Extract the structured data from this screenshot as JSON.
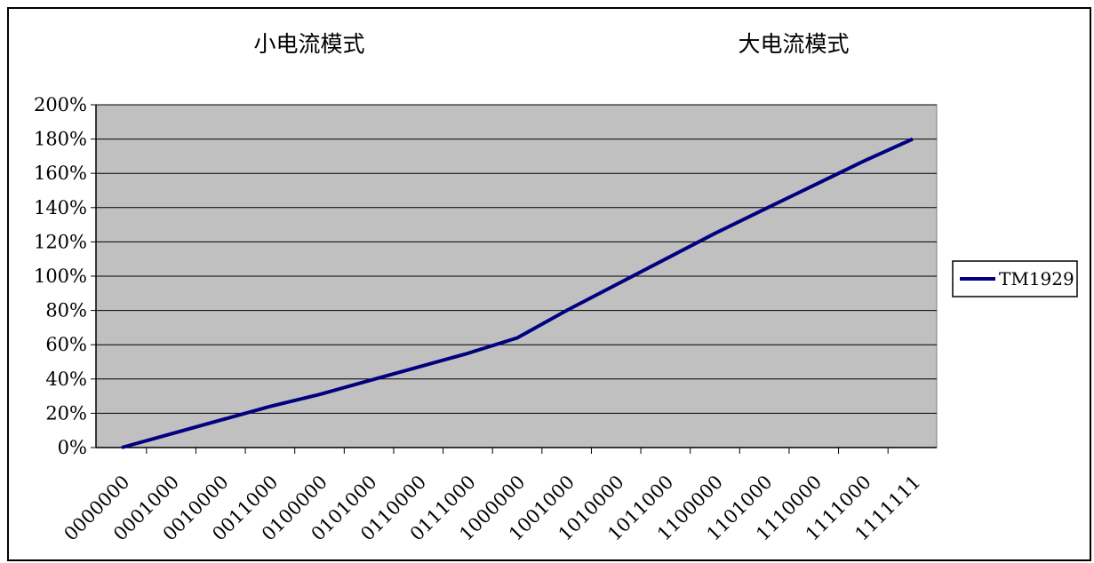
{
  "chart_data": {
    "type": "line",
    "title": "",
    "xlabel": "",
    "ylabel": "",
    "ylim": [
      0,
      200
    ],
    "ytick_format": "percent",
    "yticks": [
      0,
      20,
      40,
      60,
      80,
      100,
      120,
      140,
      160,
      180,
      200
    ],
    "categories": [
      "0000000",
      "0001000",
      "0010000",
      "0011000",
      "0100000",
      "0101000",
      "0110000",
      "0111000",
      "1000000",
      "1001000",
      "1010000",
      "1011000",
      "1100000",
      "1101000",
      "1110000",
      "1111000",
      "1111111"
    ],
    "series": [
      {
        "name": "TM1929",
        "color": "#000080",
        "values": [
          0,
          8,
          16,
          24,
          31,
          39,
          47,
          55,
          64,
          80,
          95,
          110,
          125,
          139,
          153,
          167,
          180
        ]
      }
    ],
    "annotations": [
      {
        "text": "小电流模式"
      },
      {
        "text": "大电流模式"
      }
    ],
    "plot_background": "#c0c0c0",
    "grid": true,
    "legend_position": "right"
  }
}
